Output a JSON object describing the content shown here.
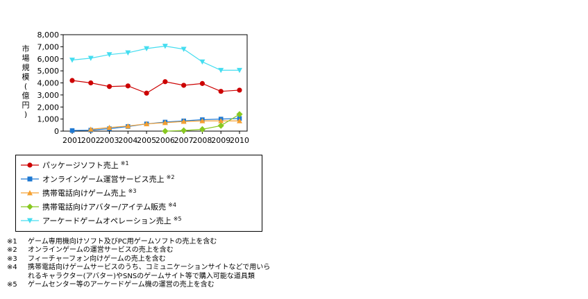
{
  "chart_data": {
    "type": "line",
    "ylabel": "市場規模(億円)",
    "xlabel": "",
    "ylim": [
      0,
      8000
    ],
    "yticks": [
      "0",
      "1,000",
      "2,000",
      "3,000",
      "4,000",
      "5,000",
      "6,000",
      "7,000",
      "8,000"
    ],
    "ytick_values": [
      0,
      1000,
      2000,
      3000,
      4000,
      5000,
      6000,
      7000,
      8000
    ],
    "x": [
      "2001",
      "2002",
      "2003",
      "2004",
      "2005",
      "2006",
      "2007",
      "2008",
      "2009",
      "2010"
    ],
    "grid": false,
    "legend_position": "below",
    "series": [
      {
        "name": "パッケージソフト売上",
        "note": "※1",
        "color": "#cc0000",
        "marker": "circle",
        "values": [
          4200,
          4000,
          3700,
          3750,
          3150,
          4100,
          3800,
          3950,
          3300,
          3400
        ]
      },
      {
        "name": "オンラインゲーム運営サービス売上",
        "note": "※2",
        "color": "#1e78d2",
        "marker": "square",
        "values": [
          50,
          80,
          200,
          380,
          600,
          750,
          850,
          950,
          1000,
          1050
        ]
      },
      {
        "name": "携帯電話向けゲーム売上",
        "note": "※3",
        "color": "#f5a030",
        "marker": "triangle-up",
        "values": [
          null,
          150,
          300,
          420,
          600,
          700,
          800,
          850,
          850,
          850
        ]
      },
      {
        "name": "携帯電話向けアバター/アイテム販売",
        "note": "※4",
        "color": "#88c820",
        "marker": "diamond",
        "values": [
          null,
          null,
          null,
          null,
          null,
          0,
          50,
          150,
          450,
          1400
        ]
      },
      {
        "name": "アーケードゲームオペレーション売上",
        "note": "※5",
        "color": "#44ddf0",
        "marker": "triangle-down",
        "values": [
          5900,
          6050,
          6350,
          6500,
          6850,
          7050,
          6800,
          5750,
          5050,
          5050
        ]
      }
    ]
  },
  "notes": [
    {
      "mark": "※1",
      "text": "ゲーム専用機向けソフト及びPC用ゲームソフトの売上を含む"
    },
    {
      "mark": "※2",
      "text": "オンラインゲームの運営サービスの売上を含む"
    },
    {
      "mark": "※3",
      "text": "フィーチャーフォン向けゲームの売上を含む"
    },
    {
      "mark": "※4",
      "text": "携帯電話向けゲームサービスのうち、コミュニケーションサイトなどで用いら"
    },
    {
      "mark": "",
      "text": "れるキャラクター(アバター)やSNSのゲームサイト等で購入可能な道具類"
    },
    {
      "mark": "※5",
      "text": "ゲームセンター等のアーケードゲーム機の運営の売上を含む"
    }
  ]
}
